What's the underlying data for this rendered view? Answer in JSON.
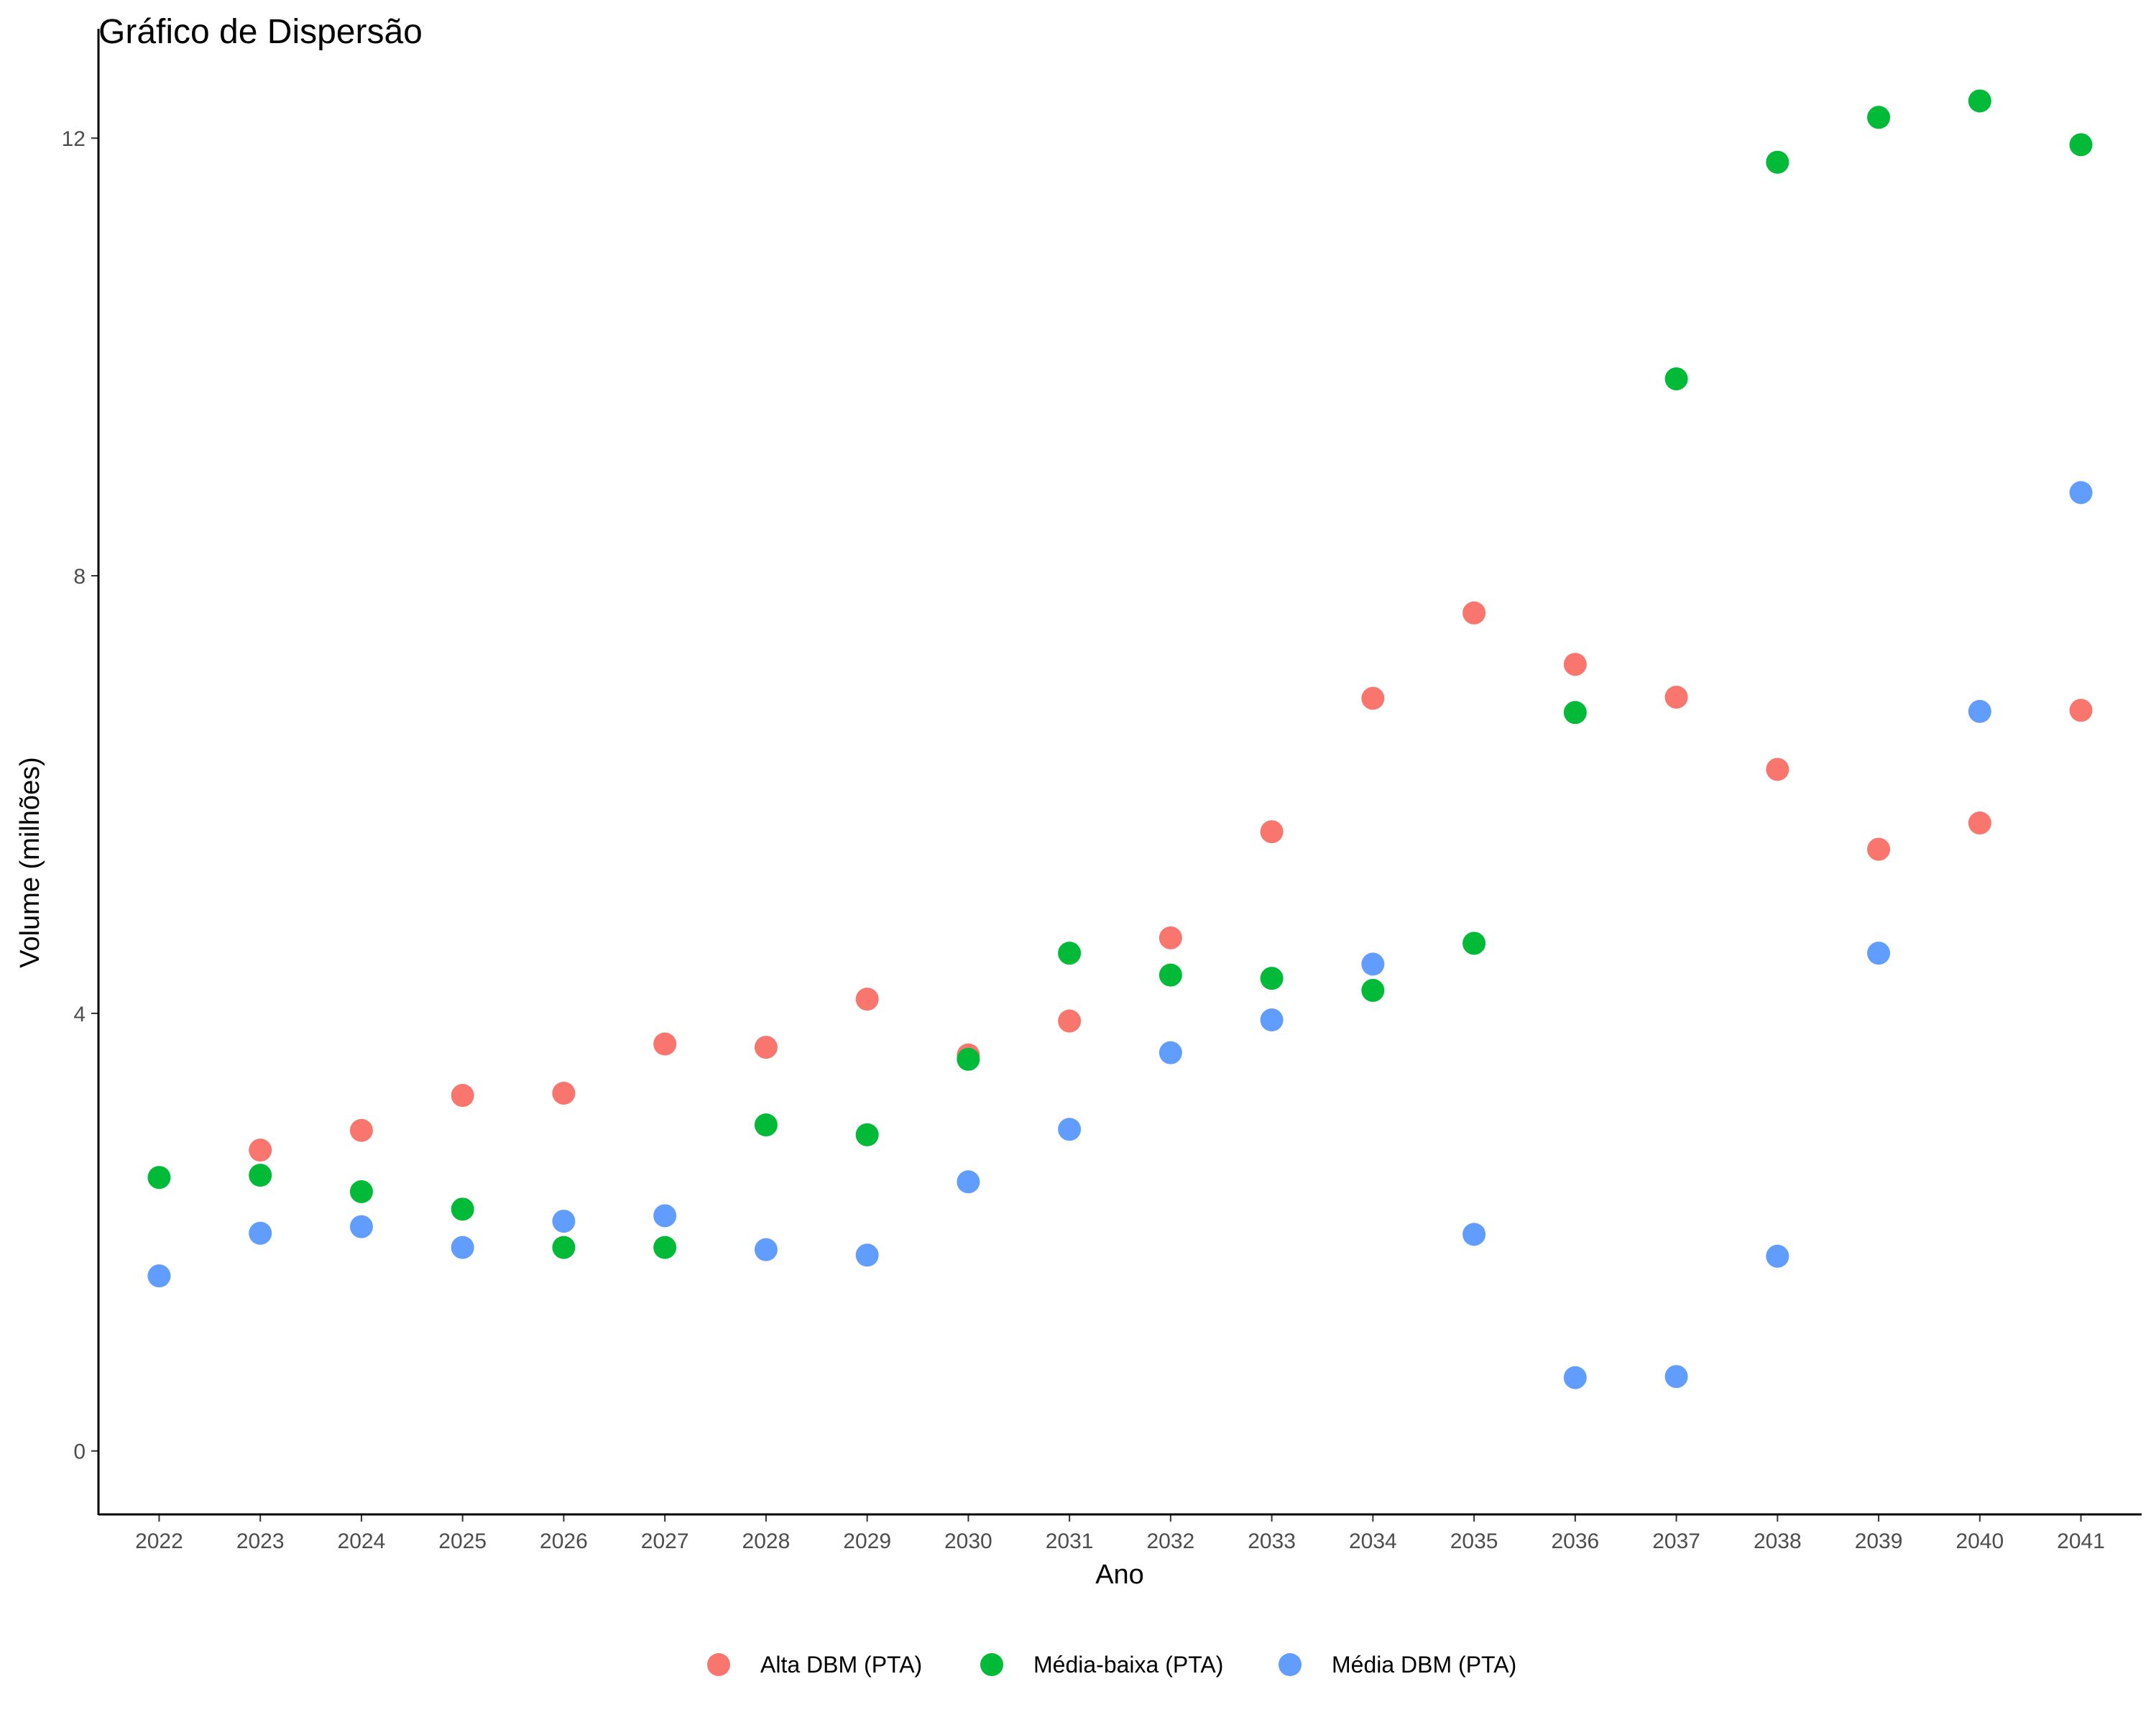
{
  "chart_data": {
    "type": "scatter",
    "title": "Gráfico de Dispersão",
    "xlabel": "Ano",
    "ylabel": "Volume (milhões)",
    "x": [
      2022,
      2023,
      2024,
      2025,
      2026,
      2027,
      2028,
      2029,
      2030,
      2031,
      2032,
      2033,
      2034,
      2035,
      2036,
      2037,
      2038,
      2039,
      2040,
      2041
    ],
    "x_ticks": [
      "2022",
      "2023",
      "2024",
      "2025",
      "2026",
      "2027",
      "2028",
      "2029",
      "2030",
      "2031",
      "2032",
      "2033",
      "2034",
      "2035",
      "2036",
      "2037",
      "2038",
      "2039",
      "2040",
      "2041"
    ],
    "y_ticks": [
      "0",
      "4",
      "8",
      "12"
    ],
    "y_tick_values": [
      0,
      4,
      8,
      12
    ],
    "xlim": [
      2021.4,
      2041.6
    ],
    "ylim": [
      -0.58,
      13.0
    ],
    "grid": false,
    "legend_position": "bottom",
    "series": [
      {
        "name": "Alta DBM (PTA)",
        "color": "#F8766D",
        "x": [
          2023,
          2024,
          2025,
          2026,
          2027,
          2028,
          2029,
          2030,
          2031,
          2032,
          2033,
          2034,
          2035,
          2036,
          2037,
          2038,
          2039,
          2040,
          2041
        ],
        "values": [
          2.75,
          2.93,
          3.25,
          3.27,
          3.72,
          3.69,
          4.13,
          3.62,
          3.93,
          4.69,
          5.66,
          6.88,
          7.66,
          7.19,
          6.89,
          6.23,
          5.5,
          5.74,
          6.77
        ]
      },
      {
        "name": "Média-baixa (PTA)",
        "color": "#00BA38",
        "x": [
          2022,
          2023,
          2024,
          2025,
          2026,
          2027,
          2028,
          2029,
          2030,
          2031,
          2032,
          2033,
          2034,
          2035,
          2036,
          2037,
          2038,
          2039,
          2040,
          2041
        ],
        "values": [
          2.5,
          2.52,
          2.37,
          2.21,
          1.86,
          1.86,
          2.98,
          2.89,
          3.58,
          4.55,
          4.35,
          4.32,
          4.21,
          4.64,
          6.75,
          9.8,
          11.78,
          12.19,
          12.34,
          11.94
        ]
      },
      {
        "name": "Média DBM (PTA)",
        "color": "#619CFF",
        "x": [
          2022,
          2023,
          2024,
          2025,
          2026,
          2027,
          2028,
          2029,
          2030,
          2031,
          2032,
          2033,
          2034,
          2035,
          2036,
          2037,
          2038,
          2039,
          2040,
          2041
        ],
        "values": [
          1.6,
          1.99,
          2.05,
          1.86,
          2.1,
          2.15,
          1.84,
          1.79,
          2.46,
          2.94,
          3.64,
          3.94,
          4.45,
          1.98,
          0.67,
          0.68,
          1.78,
          4.55,
          6.76,
          8.76
        ]
      }
    ]
  }
}
